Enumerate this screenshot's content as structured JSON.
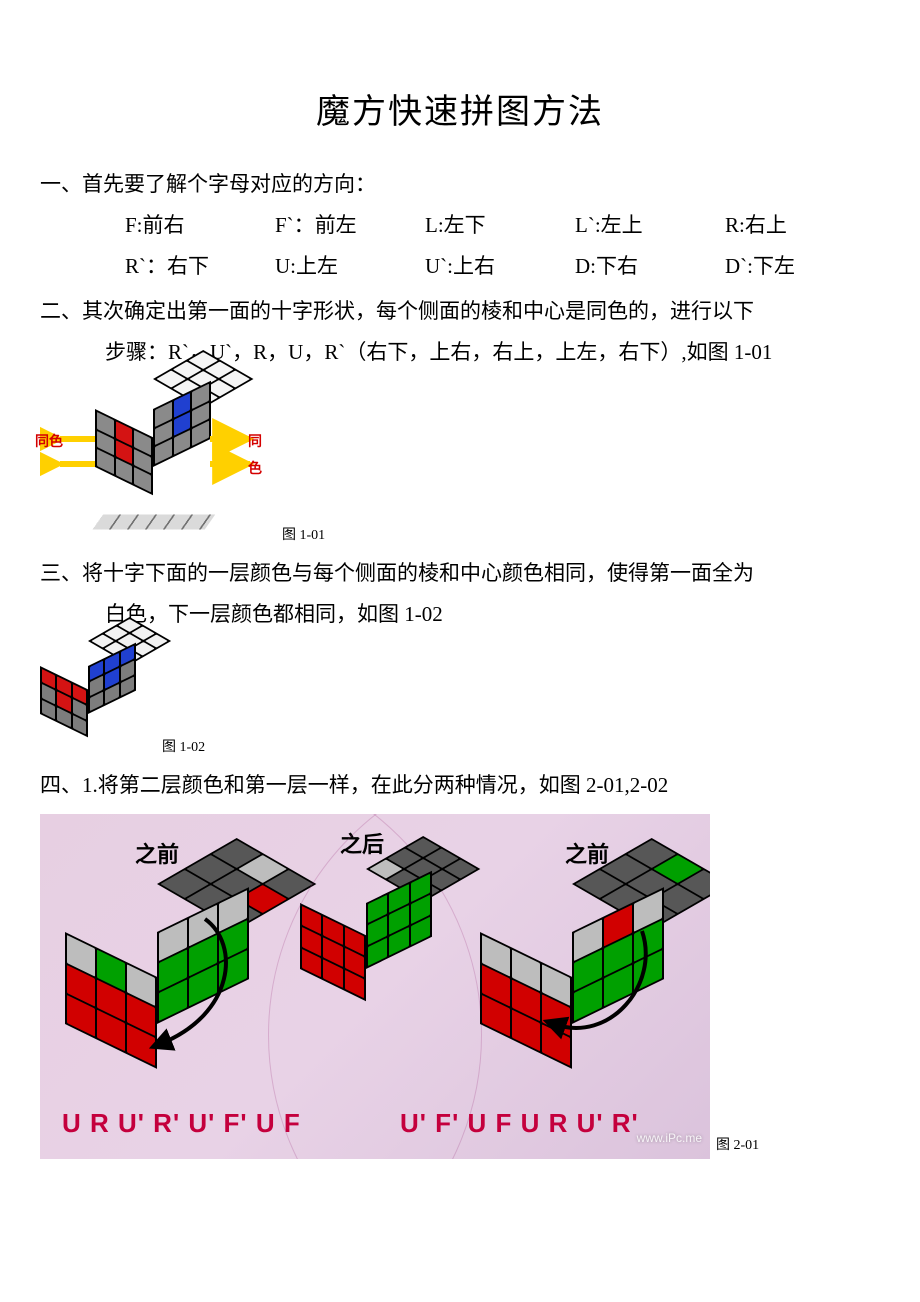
{
  "title": "魔方快速拼图方法",
  "section1": {
    "heading": "一、首先要了解个字母对应的方向：",
    "notation": [
      {
        "k": "F:",
        "v": "前右"
      },
      {
        "k": "F`：",
        "v": "前左"
      },
      {
        "k": "L:",
        "v": "左下"
      },
      {
        "k": "L`:",
        "v": "左上"
      },
      {
        "k": "R:",
        "v": "右上"
      },
      {
        "k": "R`：",
        "v": "右下"
      },
      {
        "k": "U:",
        "v": "上左"
      },
      {
        "k": "U`:",
        "v": "上右"
      },
      {
        "k": "D:",
        "v": "下右"
      },
      {
        "k": "D`:",
        "v": "下左"
      }
    ]
  },
  "section2": {
    "line1": "二、其次确定出第一面的十字形状，每个侧面的棱和中心是同色的，进行以下",
    "line2": "步骤：R`，U`，R，U，R`（右下，上右，右上，上左，右下）,如图 1-01"
  },
  "fig101": {
    "caption": "图 1-01",
    "label_left": "同色",
    "label_right": "同色",
    "colors": {
      "white": "#f5f5f5",
      "gray": "#8a8a8a",
      "darkgray": "#5a5a5a",
      "red": "#d41313",
      "blue": "#2040d0",
      "top_fill": "#e6e6e6",
      "arrow": "#ffd000",
      "arrow_label": "#d40000",
      "edge": "#000000"
    },
    "top_face": [
      "white",
      "white",
      "white",
      "white",
      "white",
      "white",
      "white",
      "white",
      "white"
    ],
    "left_face": [
      "gray",
      "red",
      "gray",
      "gray",
      "red",
      "gray",
      "gray",
      "gray",
      "gray"
    ],
    "right_face": [
      "gray",
      "blue",
      "gray",
      "gray",
      "blue",
      "gray",
      "gray",
      "gray",
      "gray"
    ]
  },
  "section3": {
    "line1": "三、将十字下面的一层颜色与每个侧面的棱和中心颜色相同，使得第一面全为",
    "line2": "白色，下一层颜色都相同，如图 1-02"
  },
  "fig102": {
    "caption": "图 1-02",
    "colors": {
      "white": "#f2f2f2",
      "gray": "#7d7d7d",
      "red": "#d41313",
      "blue": "#2040d0",
      "edge": "#000000"
    },
    "top_face": [
      "white",
      "white",
      "white",
      "white",
      "white",
      "white",
      "white",
      "white",
      "white"
    ],
    "left_face": [
      "red",
      "red",
      "red",
      "gray",
      "red",
      "gray",
      "gray",
      "gray",
      "gray"
    ],
    "right_face": [
      "blue",
      "blue",
      "blue",
      "gray",
      "blue",
      "gray",
      "gray",
      "gray",
      "gray"
    ]
  },
  "section4": {
    "line": "四、1.将第二层颜色和第一层一样，在此分两种情况，如图 2-01,2-02"
  },
  "fig201": {
    "caption": "图 2-01",
    "background_color": "#e7cfe2",
    "colors": {
      "lightgray": "#bdbdbd",
      "darkgray": "#575757",
      "red": "#d10000",
      "green": "#00a000",
      "edge": "#000000",
      "alg": "#c4003d",
      "label": "#000000"
    },
    "labels": {
      "before": "之前",
      "after": "之后"
    },
    "cubeA": {
      "top": [
        "darkgray",
        "darkgray",
        "darkgray",
        "darkgray",
        "darkgray",
        "lightgray",
        "darkgray",
        "red",
        "darkgray"
      ],
      "left": [
        "lightgray",
        "green",
        "lightgray",
        "red",
        "red",
        "red",
        "red",
        "red",
        "red"
      ],
      "right": [
        "lightgray",
        "lightgray",
        "lightgray",
        "green",
        "green",
        "green",
        "green",
        "green",
        "green"
      ]
    },
    "cubeB": {
      "top": [
        "lightgray",
        "darkgray",
        "darkgray",
        "darkgray",
        "darkgray",
        "darkgray",
        "darkgray",
        "darkgray",
        "darkgray"
      ],
      "left": [
        "red",
        "red",
        "red",
        "red",
        "red",
        "red",
        "red",
        "red",
        "red"
      ],
      "right": [
        "green",
        "green",
        "green",
        "green",
        "green",
        "green",
        "green",
        "green",
        "green"
      ]
    },
    "cubeC": {
      "top": [
        "darkgray",
        "darkgray",
        "darkgray",
        "darkgray",
        "darkgray",
        "green",
        "darkgray",
        "darkgray",
        "darkgray"
      ],
      "left": [
        "lightgray",
        "lightgray",
        "lightgray",
        "red",
        "red",
        "red",
        "red",
        "red",
        "red"
      ],
      "right": [
        "lightgray",
        "red",
        "lightgray",
        "green",
        "green",
        "green",
        "green",
        "green",
        "green"
      ]
    },
    "alg_left": "U R U' R' U' F' U F",
    "alg_right": "U' F' U F U R U' R'",
    "watermark": "www.iPc.me"
  }
}
